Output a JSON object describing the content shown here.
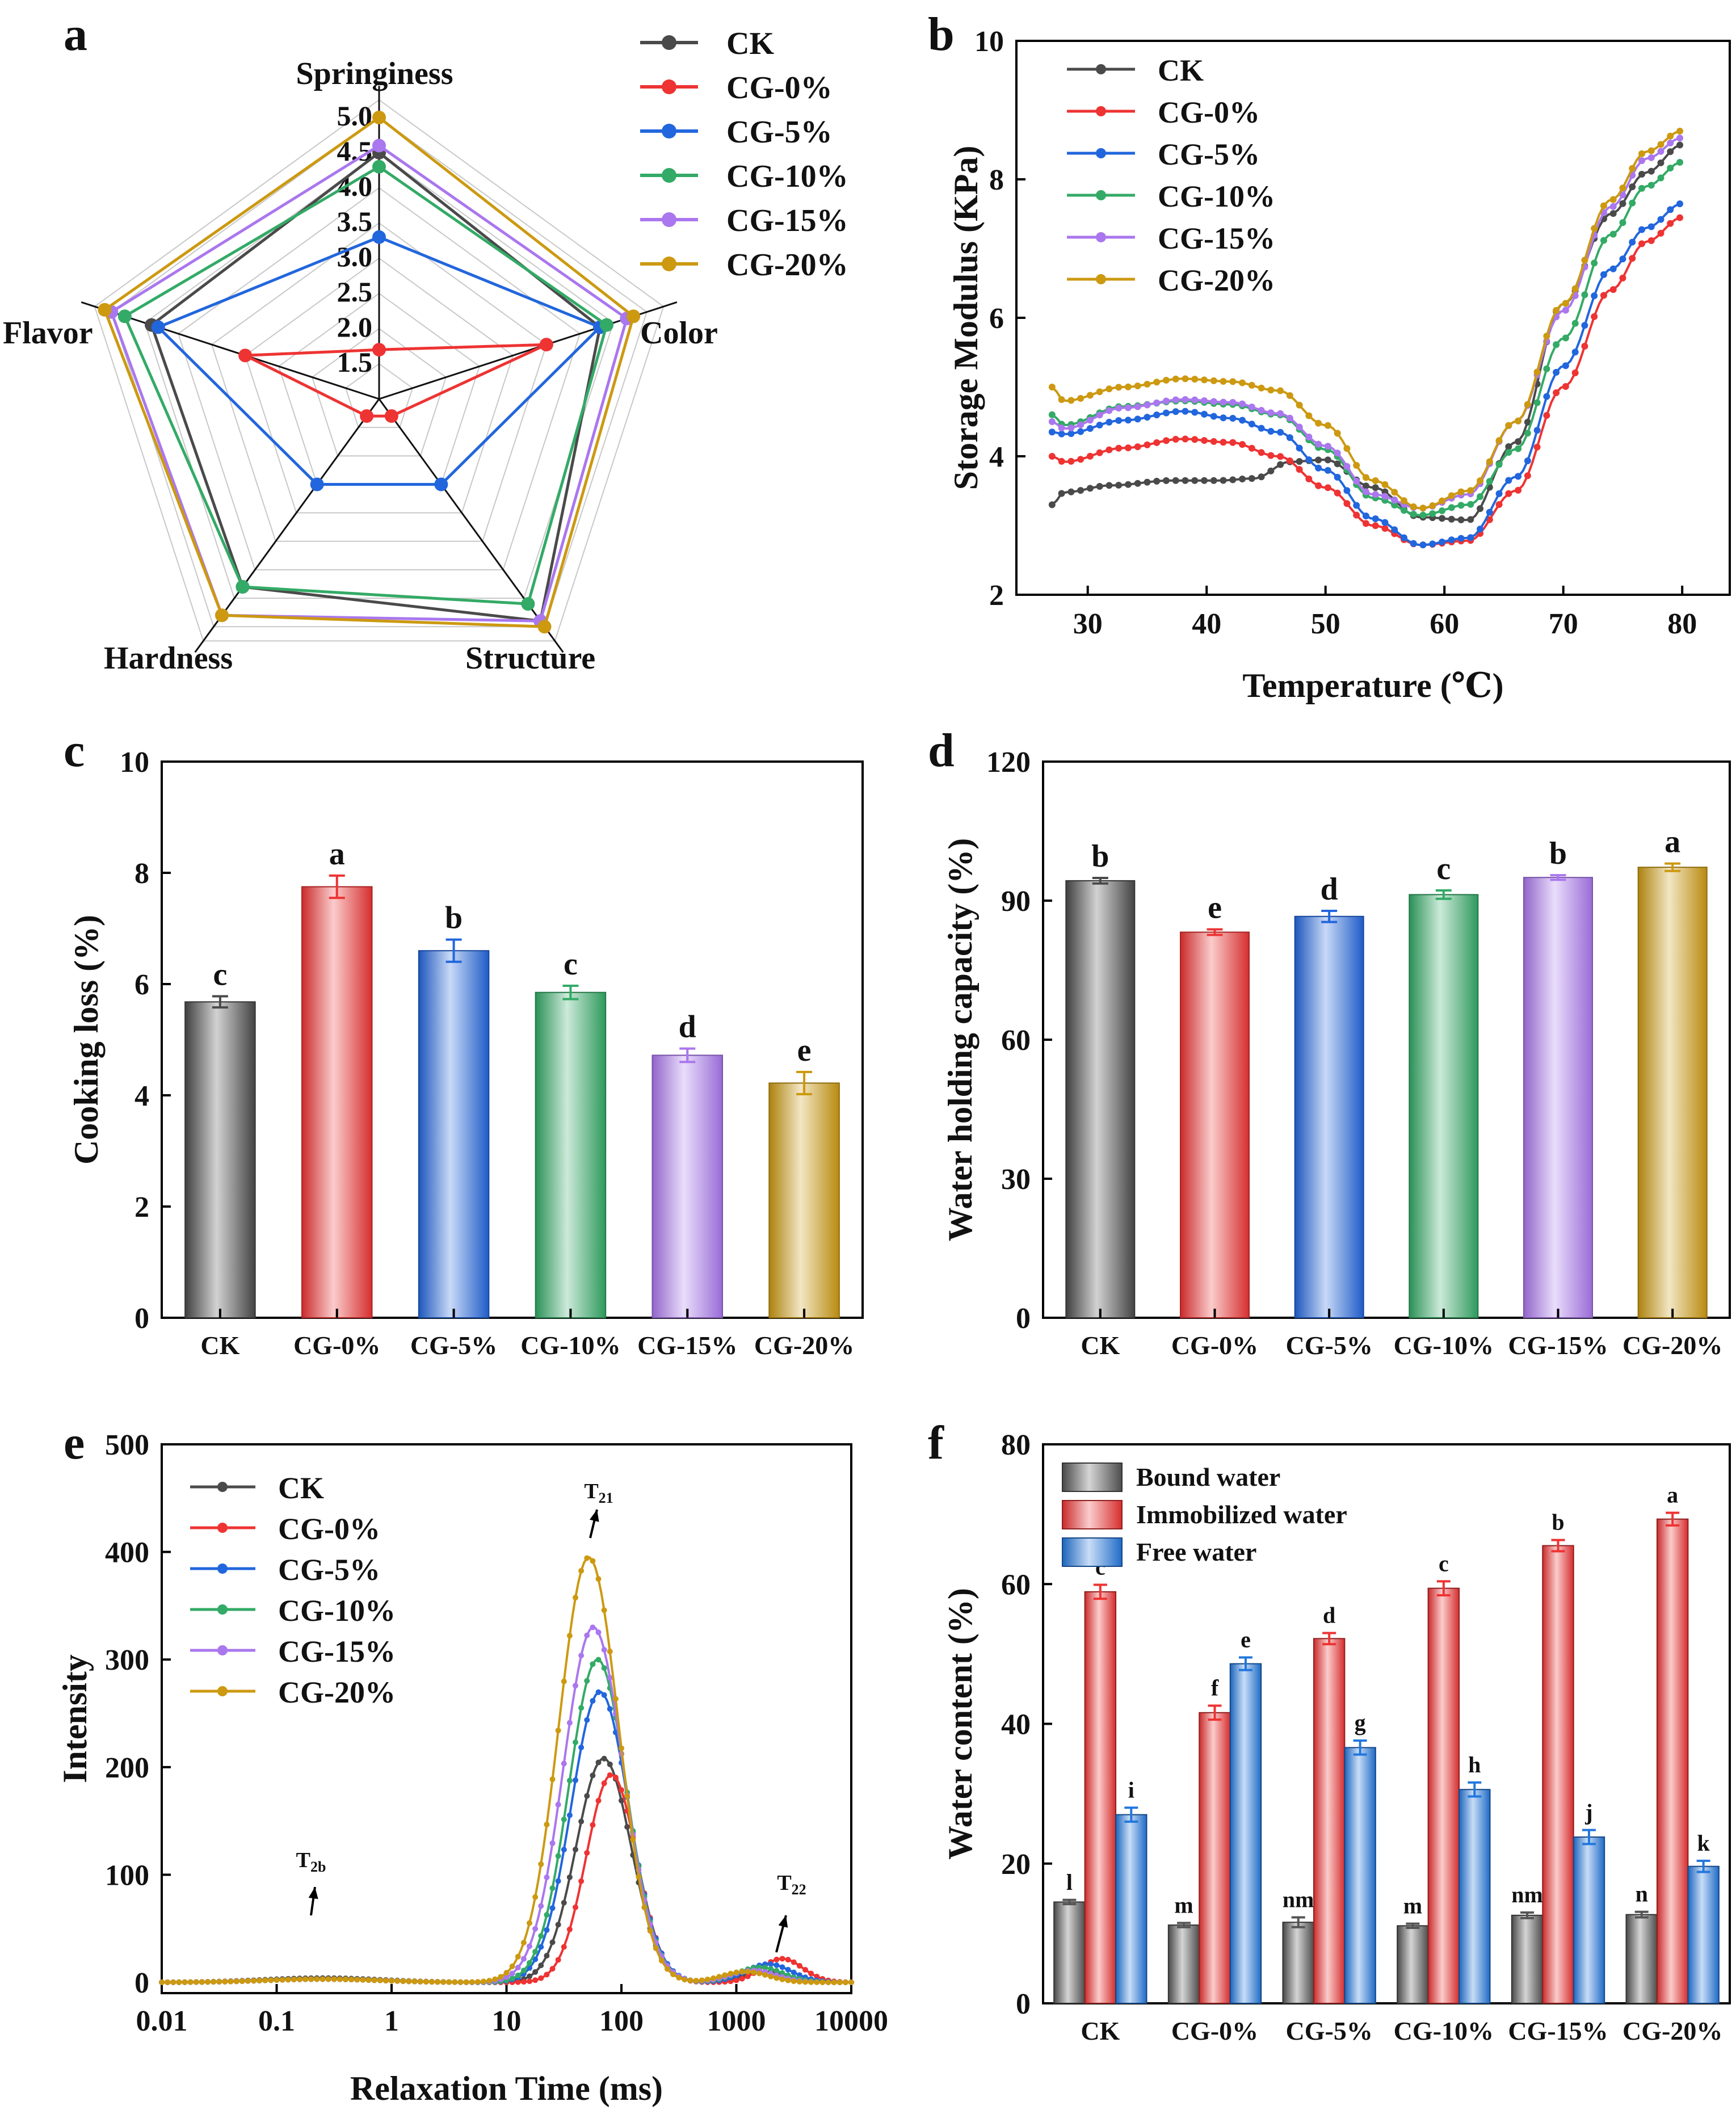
{
  "colors": {
    "CK": "#4a4a4a",
    "CG-0%": "#ee3333",
    "CG-5%": "#2266dd",
    "CG-10%": "#33aa66",
    "CG-15%": "#aa77ee",
    "CG-20%": "#cc9911",
    "axis": "#000000"
  },
  "chart_data": [
    {
      "panel": "a",
      "type": "radar",
      "axes_labels": [
        "Springiness",
        "Color",
        "Structure",
        "Hardness",
        "Flavor"
      ],
      "rlim": [
        1,
        5
      ],
      "ticks": [
        1.5,
        2.0,
        2.5,
        3.0,
        3.5,
        4.0,
        4.5,
        5.0
      ],
      "tick_labels": [
        "1.5",
        "2.0",
        "2.5",
        "3.0",
        "3.5",
        "4.0",
        "4.5",
        "5.0"
      ],
      "legend": [
        "CK",
        "CG-0%",
        "CG-5%",
        "CG-10%",
        "CG-15%",
        "CG-20%"
      ],
      "series": [
        {
          "name": "CK",
          "values": [
            4.5,
            4.3,
            4.9,
            4.3,
            4.4
          ]
        },
        {
          "name": "CG-0%",
          "values": [
            1.7,
            3.5,
            1.3,
            1.3,
            3.0
          ]
        },
        {
          "name": "CG-5%",
          "values": [
            3.3,
            4.3,
            2.5,
            2.5,
            4.3
          ]
        },
        {
          "name": "CG-10%",
          "values": [
            4.3,
            4.4,
            4.6,
            4.3,
            4.8
          ]
        },
        {
          "name": "CG-15%",
          "values": [
            4.6,
            4.7,
            4.9,
            4.8,
            5.0
          ]
        },
        {
          "name": "CG-20%",
          "values": [
            5.0,
            4.8,
            5.0,
            4.8,
            5.1
          ]
        }
      ]
    },
    {
      "panel": "b",
      "type": "line",
      "xlabel": "Temperature (℃)",
      "ylabel": "Storage Modulus (KPa)",
      "xlim": [
        24,
        84
      ],
      "ylim": [
        2,
        10
      ],
      "xticks": [
        30,
        40,
        50,
        60,
        70,
        80
      ],
      "yticks": [
        2,
        4,
        6,
        8,
        10
      ],
      "legend": [
        "CK",
        "CG-0%",
        "CG-5%",
        "CG-10%",
        "CG-15%",
        "CG-20%"
      ],
      "series": [
        {
          "name": "CK",
          "x": [
            27,
            28,
            32,
            37,
            41,
            44,
            47,
            50,
            54,
            58,
            62,
            66,
            70,
            74,
            77,
            80
          ],
          "y": [
            3.3,
            3.48,
            3.58,
            3.65,
            3.65,
            3.68,
            3.92,
            3.95,
            3.55,
            3.12,
            3.08,
            4.2,
            6.2,
            7.5,
            8.1,
            8.5
          ]
        },
        {
          "name": "CG-0%",
          "x": [
            27,
            28,
            33,
            38,
            42,
            46,
            50,
            54,
            58,
            62,
            66,
            70,
            74,
            77,
            80
          ],
          "y": [
            4.0,
            3.92,
            4.12,
            4.25,
            4.2,
            4.0,
            3.55,
            3.0,
            2.72,
            2.78,
            3.5,
            5.0,
            6.4,
            7.1,
            7.45
          ]
        },
        {
          "name": "CG-5%",
          "x": [
            27,
            28,
            33,
            38,
            42,
            46,
            50,
            54,
            58,
            62,
            66,
            70,
            74,
            77,
            80
          ],
          "y": [
            4.35,
            4.32,
            4.52,
            4.65,
            4.55,
            4.35,
            3.8,
            3.1,
            2.72,
            2.82,
            3.7,
            5.3,
            6.7,
            7.3,
            7.65
          ]
        },
        {
          "name": "CG-10%",
          "x": [
            27,
            28,
            33,
            38,
            42,
            46,
            50,
            54,
            58,
            62,
            66,
            70,
            74,
            77,
            80
          ],
          "y": [
            4.6,
            4.45,
            4.72,
            4.8,
            4.75,
            4.6,
            4.1,
            3.4,
            3.15,
            3.3,
            4.1,
            5.7,
            7.2,
            7.9,
            8.25
          ]
        },
        {
          "name": "CG-15%",
          "x": [
            27,
            28,
            33,
            38,
            42,
            46,
            50,
            54,
            58,
            62,
            66,
            70,
            74,
            77,
            80
          ],
          "y": [
            4.5,
            4.4,
            4.7,
            4.82,
            4.78,
            4.62,
            4.15,
            3.45,
            3.25,
            3.45,
            4.5,
            6.1,
            7.6,
            8.3,
            8.6
          ]
        },
        {
          "name": "CG-20%",
          "x": [
            27,
            28,
            33,
            38,
            42,
            46,
            50,
            54,
            58,
            62,
            66,
            70,
            74,
            77,
            80
          ],
          "y": [
            5.0,
            4.8,
            5.0,
            5.12,
            5.08,
            4.95,
            4.45,
            3.65,
            3.25,
            3.5,
            4.5,
            6.2,
            7.7,
            8.4,
            8.7
          ]
        }
      ]
    },
    {
      "panel": "c",
      "type": "bar",
      "ylabel": "Cooking loss (%)",
      "ylim": [
        0,
        10
      ],
      "yticks": [
        0,
        2,
        4,
        6,
        8,
        10
      ],
      "categories": [
        "CK",
        "CG-0%",
        "CG-5%",
        "CG-10%",
        "CG-15%",
        "CG-20%"
      ],
      "values": [
        5.68,
        7.75,
        6.6,
        5.85,
        4.72,
        4.22
      ],
      "errors": [
        0.1,
        0.2,
        0.2,
        0.12,
        0.12,
        0.2
      ],
      "letters": [
        "c",
        "a",
        "b",
        "c",
        "d",
        "e"
      ]
    },
    {
      "panel": "d",
      "type": "bar",
      "ylabel": "Water holding capacity (%)",
      "ylim": [
        0,
        120
      ],
      "yticks": [
        0,
        30,
        60,
        90,
        120
      ],
      "categories": [
        "CK",
        "CG-0%",
        "CG-5%",
        "CG-10%",
        "CG-15%",
        "CG-20%"
      ],
      "values": [
        94.3,
        83.2,
        86.6,
        91.3,
        95.0,
        97.2
      ],
      "errors": [
        0.6,
        0.6,
        1.2,
        0.9,
        0.5,
        0.8
      ],
      "letters": [
        "b",
        "e",
        "d",
        "c",
        "b",
        "a"
      ]
    },
    {
      "panel": "e",
      "type": "line",
      "xscale": "log",
      "xlabel": "Relaxation Time (ms)",
      "ylabel": "Intensity",
      "xlim": [
        0.01,
        10000
      ],
      "ylim": [
        -10,
        500
      ],
      "xticks": [
        0.01,
        0.1,
        1,
        10,
        100,
        1000,
        10000
      ],
      "xtick_labels": [
        "0.01",
        "0.1",
        "1",
        "10",
        "100",
        "1000",
        "10000"
      ],
      "yticks": [
        0,
        100,
        200,
        300,
        400,
        500
      ],
      "annotations": [
        "T",
        "2b",
        "T",
        "21",
        "T",
        "22"
      ],
      "legend": [
        "CK",
        "CG-0%",
        "CG-5%",
        "CG-10%",
        "CG-15%",
        "CG-20%"
      ],
      "series": [
        {
          "name": "CK",
          "peaks": [
            [
              0.25,
              4,
              0.5
            ],
            [
              70,
              208,
              0.24
            ],
            [
              1800,
              10,
              0.2
            ]
          ]
        },
        {
          "name": "CG-0%",
          "peaks": [
            [
              0.25,
              3,
              0.5
            ],
            [
              82,
              193,
              0.22
            ],
            [
              2500,
              22,
              0.18
            ]
          ]
        },
        {
          "name": "CG-5%",
          "peaks": [
            [
              0.25,
              3,
              0.5
            ],
            [
              65,
              270,
              0.25
            ],
            [
              1900,
              17,
              0.2
            ]
          ]
        },
        {
          "name": "CG-10%",
          "peaks": [
            [
              0.25,
              3,
              0.5
            ],
            [
              62,
              300,
              0.25
            ],
            [
              1600,
              14,
              0.2
            ]
          ]
        },
        {
          "name": "CG-15%",
          "peaks": [
            [
              0.25,
              3,
              0.5
            ],
            [
              57,
              330,
              0.26
            ],
            [
              1400,
              11,
              0.2
            ]
          ]
        },
        {
          "name": "CG-20%",
          "peaks": [
            [
              0.25,
              3,
              0.5
            ],
            [
              52,
              395,
              0.26
            ],
            [
              1200,
              10,
              0.2
            ]
          ]
        }
      ]
    },
    {
      "panel": "f",
      "type": "bar",
      "ylabel": "Water content (%)",
      "ylim": [
        0,
        80
      ],
      "yticks": [
        0,
        20,
        40,
        60,
        80
      ],
      "categories": [
        "CK",
        "CG-0%",
        "CG-5%",
        "CG-10%",
        "CG-15%",
        "CG-20%"
      ],
      "legend": [
        "Bound water",
        "Immobilized water",
        "Free water"
      ],
      "series": [
        {
          "name": "Bound water",
          "values": [
            14.5,
            11.2,
            11.6,
            11.1,
            12.6,
            12.7
          ],
          "errors": [
            0.3,
            0.3,
            0.7,
            0.3,
            0.4,
            0.4
          ],
          "letters": [
            "l",
            "m",
            "nm",
            "m",
            "nm",
            "n"
          ]
        },
        {
          "name": "Immobilized water",
          "values": [
            58.9,
            41.6,
            52.2,
            59.4,
            65.5,
            69.3
          ],
          "errors": [
            1.0,
            1.0,
            0.8,
            1.0,
            0.8,
            0.9
          ],
          "letters": [
            "c",
            "f",
            "d",
            "c",
            "b",
            "a"
          ]
        },
        {
          "name": "Free water",
          "values": [
            27.0,
            48.6,
            36.6,
            30.6,
            23.8,
            19.6
          ],
          "errors": [
            1.0,
            0.9,
            1.0,
            1.0,
            1.0,
            0.8
          ],
          "letters": [
            "i",
            "e",
            "g",
            "h",
            "j",
            "k"
          ]
        }
      ]
    }
  ]
}
